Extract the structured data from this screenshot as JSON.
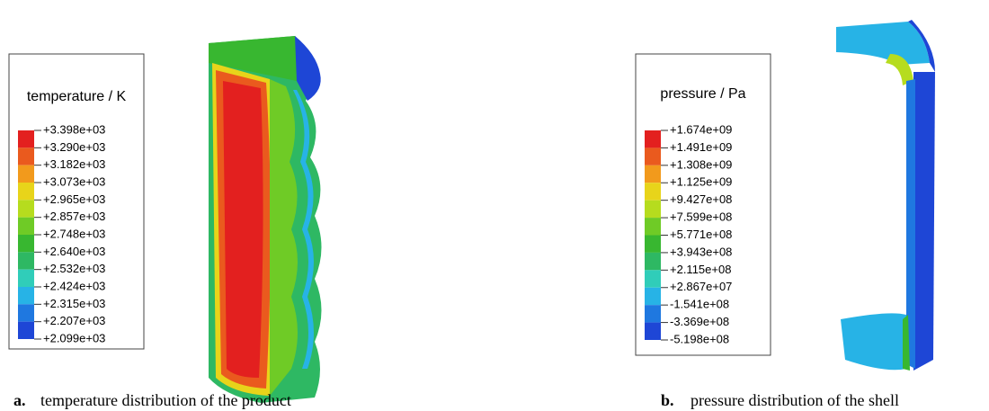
{
  "panels": [
    {
      "label": "a.",
      "caption": "temperature distribution of the product",
      "legend_title": "temperature / K",
      "legend_labels": [
        "+3.398e+03",
        "+3.290e+03",
        "+3.182e+03",
        "+3.073e+03",
        "+2.965e+03",
        "+2.857e+03",
        "+2.748e+03",
        "+2.640e+03",
        "+2.532e+03",
        "+2.424e+03",
        "+2.315e+03",
        "+2.207e+03",
        "+2.099e+03"
      ],
      "colors": [
        "#e3201f",
        "#ea5a1e",
        "#f29a1c",
        "#e8d41a",
        "#b6dc1e",
        "#6fcb26",
        "#38b730",
        "#2eb863",
        "#30cdb9",
        "#27b3e6",
        "#1f78e0",
        "#1e46d6"
      ]
    },
    {
      "label": "b.",
      "caption": "pressure distribution of the shell",
      "legend_title": "pressure / Pa",
      "legend_labels": [
        "+1.674e+09",
        "+1.491e+09",
        "+1.308e+09",
        "+1.125e+09",
        "+9.427e+08",
        "+7.599e+08",
        "+5.771e+08",
        "+3.943e+08",
        "+2.115e+08",
        "+2.867e+07",
        "-1.541e+08",
        "-3.369e+08",
        "-5.198e+08"
      ],
      "colors": [
        "#e3201f",
        "#ea5a1e",
        "#f29a1c",
        "#e8d41a",
        "#b6dc1e",
        "#6fcb26",
        "#38b730",
        "#2eb863",
        "#30cdb9",
        "#27b3e6",
        "#1f78e0",
        "#1e46d6"
      ]
    }
  ]
}
